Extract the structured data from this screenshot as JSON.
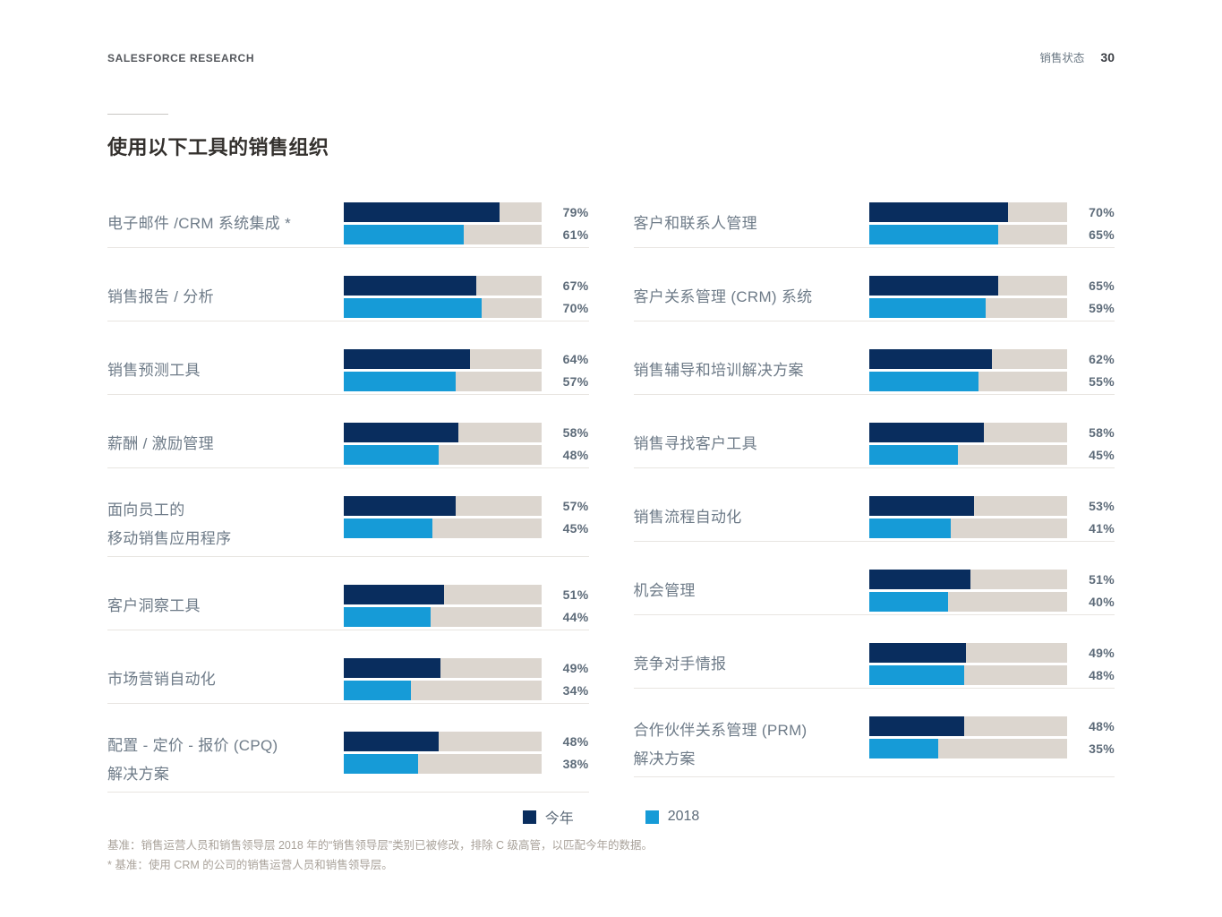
{
  "header": {
    "brand": "SALESFORCE RESEARCH",
    "report_title": "销售状态",
    "page_number": "30"
  },
  "chart_data": {
    "type": "bar",
    "orientation": "horizontal",
    "title": "使用以下工具的销售组织",
    "value_suffix": "%",
    "xlim": [
      0,
      100
    ],
    "series_names": [
      "今年",
      "2018"
    ],
    "legend": [
      {
        "label": "今年",
        "color": "#092d5e"
      },
      {
        "label": "2018",
        "color": "#169bd7"
      }
    ],
    "colors": {
      "this_year": "#092d5e",
      "y2018": "#169bd7",
      "track": "#dcd6cf"
    },
    "columns": [
      {
        "rows": [
          {
            "label_lines": [
              "电子邮件 /CRM 系统集成 *"
            ],
            "values": [
              79,
              61
            ]
          },
          {
            "label_lines": [
              "销售报告 / 分析"
            ],
            "values": [
              67,
              70
            ]
          },
          {
            "label_lines": [
              "销售预测工具"
            ],
            "values": [
              64,
              57
            ]
          },
          {
            "label_lines": [
              "薪酬 / 激励管理"
            ],
            "values": [
              58,
              48
            ]
          },
          {
            "label_lines": [
              "面向员工的",
              "移动销售应用程序"
            ],
            "values": [
              57,
              45
            ]
          },
          {
            "label_lines": [
              "客户洞察工具"
            ],
            "values": [
              51,
              44
            ]
          },
          {
            "label_lines": [
              "市场营销自动化"
            ],
            "values": [
              49,
              34
            ]
          },
          {
            "label_lines": [
              "配置 - 定价 - 报价 (CPQ)",
              "解决方案"
            ],
            "values": [
              48,
              38
            ]
          }
        ]
      },
      {
        "rows": [
          {
            "label_lines": [
              "客户和联系人管理"
            ],
            "values": [
              70,
              65
            ]
          },
          {
            "label_lines": [
              "客户关系管理 (CRM) 系统"
            ],
            "values": [
              65,
              59
            ]
          },
          {
            "label_lines": [
              "销售辅导和培训解决方案"
            ],
            "values": [
              62,
              55
            ]
          },
          {
            "label_lines": [
              "销售寻找客户工具"
            ],
            "values": [
              58,
              45
            ]
          },
          {
            "label_lines": [
              "销售流程自动化"
            ],
            "values": [
              53,
              41
            ]
          },
          {
            "label_lines": [
              "机会管理"
            ],
            "values": [
              51,
              40
            ]
          },
          {
            "label_lines": [
              "竞争对手情报"
            ],
            "values": [
              49,
              48
            ]
          },
          {
            "label_lines": [
              "合作伙伴关系管理 (PRM)",
              "解决方案"
            ],
            "values": [
              48,
              35
            ]
          }
        ]
      }
    ]
  },
  "footnotes": [
    "基准：销售运营人员和销售领导层 2018 年的“销售领导层”类别已被修改，排除 C 级高管，以匹配今年的数据。",
    "* 基准：使用 CRM 的公司的销售运营人员和销售领导层。"
  ]
}
